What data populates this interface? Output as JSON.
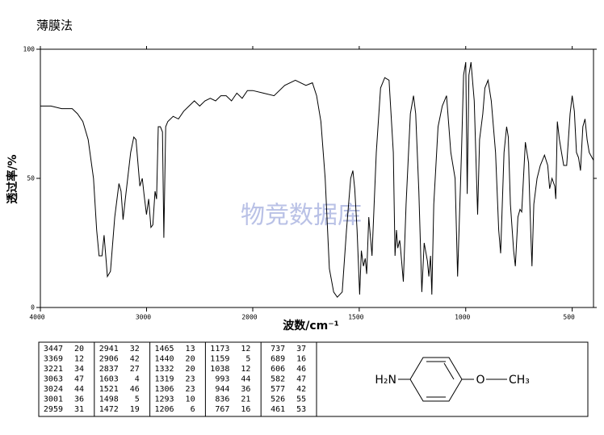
{
  "chart_data": {
    "type": "line",
    "title": "薄膜法",
    "xlabel": "波数/cm⁻¹",
    "ylabel": "透过率/%",
    "watermark": "物竞数据库",
    "xlim": [
      4000,
      400
    ],
    "xticks": [
      4000,
      3000,
      2000,
      1500,
      1000,
      500
    ],
    "x_scale_break": 2000,
    "ylim": [
      0,
      100
    ],
    "yticks": [
      0,
      50,
      100
    ],
    "color": "#000000",
    "x": [
      4000,
      3900,
      3800,
      3700,
      3650,
      3600,
      3550,
      3500,
      3470,
      3447,
      3420,
      3400,
      3380,
      3369,
      3340,
      3300,
      3260,
      3240,
      3221,
      3200,
      3150,
      3120,
      3100,
      3063,
      3040,
      3024,
      3001,
      2980,
      2959,
      2941,
      2920,
      2906,
      2890,
      2870,
      2850,
      2837,
      2820,
      2800,
      2750,
      2700,
      2650,
      2600,
      2550,
      2500,
      2450,
      2400,
      2350,
      2300,
      2250,
      2200,
      2150,
      2100,
      2050,
      2000,
      1950,
      1900,
      1850,
      1800,
      1750,
      1720,
      1700,
      1680,
      1660,
      1640,
      1620,
      1603,
      1580,
      1560,
      1540,
      1530,
      1521,
      1510,
      1498,
      1490,
      1480,
      1472,
      1465,
      1455,
      1440,
      1420,
      1400,
      1380,
      1360,
      1340,
      1332,
      1325,
      1319,
      1310,
      1306,
      1293,
      1280,
      1260,
      1245,
      1235,
      1220,
      1206,
      1195,
      1180,
      1173,
      1165,
      1159,
      1150,
      1130,
      1110,
      1090,
      1070,
      1050,
      1038,
      1020,
      1010,
      1000,
      993,
      985,
      975,
      960,
      944,
      935,
      920,
      910,
      895,
      880,
      860,
      845,
      836,
      820,
      808,
      800,
      790,
      775,
      767,
      755,
      745,
      737,
      720,
      705,
      695,
      689,
      680,
      665,
      650,
      630,
      615,
      606,
      595,
      582,
      577,
      570,
      560,
      550,
      540,
      526,
      510,
      500,
      490,
      480,
      470,
      461,
      450,
      440,
      430,
      420,
      400
    ],
    "y": [
      78,
      78,
      77,
      77,
      75,
      72,
      65,
      50,
      30,
      20,
      20,
      28,
      18,
      12,
      14,
      35,
      48,
      45,
      34,
      42,
      60,
      66,
      65,
      47,
      50,
      44,
      36,
      42,
      31,
      32,
      45,
      42,
      70,
      70,
      68,
      27,
      70,
      72,
      74,
      73,
      76,
      78,
      80,
      78,
      80,
      81,
      80,
      82,
      82,
      80,
      83,
      81,
      84,
      84,
      83,
      82,
      86,
      88,
      86,
      87,
      82,
      72,
      50,
      15,
      6,
      4,
      6,
      30,
      50,
      53,
      46,
      30,
      5,
      22,
      16,
      19,
      13,
      35,
      20,
      60,
      85,
      89,
      88,
      60,
      20,
      30,
      23,
      26,
      23,
      10,
      40,
      75,
      82,
      75,
      45,
      6,
      25,
      18,
      12,
      20,
      5,
      40,
      70,
      78,
      82,
      60,
      50,
      12,
      60,
      90,
      95,
      44,
      90,
      95,
      80,
      36,
      65,
      75,
      85,
      88,
      80,
      60,
      30,
      21,
      60,
      70,
      66,
      40,
      22,
      16,
      35,
      38,
      37,
      64,
      56,
      30,
      16,
      40,
      50,
      55,
      59,
      55,
      46,
      50,
      47,
      42,
      72,
      65,
      60,
      55,
      55,
      75,
      82,
      76,
      60,
      58,
      53,
      70,
      73,
      65,
      60,
      57
    ]
  },
  "peak_table": [
    [
      [
        3447,
        20
      ],
      [
        3369,
        12
      ],
      [
        3221,
        34
      ],
      [
        3063,
        47
      ],
      [
        3024,
        44
      ],
      [
        3001,
        36
      ],
      [
        2959,
        31
      ]
    ],
    [
      [
        2941,
        32
      ],
      [
        2906,
        42
      ],
      [
        2837,
        27
      ],
      [
        1603,
        4
      ],
      [
        1521,
        46
      ],
      [
        1498,
        5
      ],
      [
        1472,
        19
      ]
    ],
    [
      [
        1465,
        13
      ],
      [
        1440,
        20
      ],
      [
        1332,
        20
      ],
      [
        1319,
        23
      ],
      [
        1306,
        23
      ],
      [
        1293,
        10
      ],
      [
        1206,
        6
      ]
    ],
    [
      [
        1173,
        12
      ],
      [
        1159,
        5
      ],
      [
        1038,
        12
      ],
      [
        993,
        44
      ],
      [
        944,
        36
      ],
      [
        836,
        21
      ],
      [
        767,
        16
      ]
    ],
    [
      [
        737,
        37
      ],
      [
        689,
        16
      ],
      [
        606,
        46
      ],
      [
        582,
        47
      ],
      [
        577,
        42
      ],
      [
        526,
        55
      ],
      [
        461,
        53
      ]
    ]
  ],
  "structure": {
    "left": "H₂N",
    "oxygen": "O",
    "right": "CH₃"
  }
}
